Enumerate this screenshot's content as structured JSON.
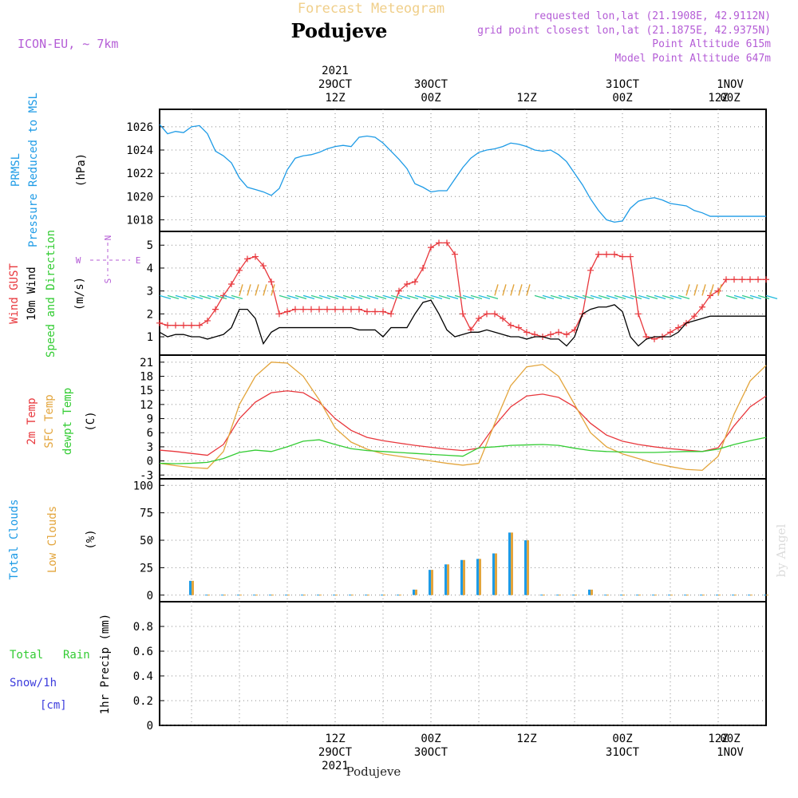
{
  "header": {
    "title": "Forecast Meteogram",
    "location": "Podujeve",
    "model": "ICON-EU, ~ 7km",
    "requested": "requested lon,lat (21.1908E, 42.9112N)",
    "grid_point": "grid point closest lon,lat (21.1875E, 42.9375N)",
    "point_altitude": "Point Altitude 615m",
    "model_altitude": "Model Point Altitude 647m",
    "credit": "by Angel",
    "footer_location": "Podujeve"
  },
  "time_axis": {
    "start_hour": -10,
    "end_hour": 66,
    "top_labels": [
      {
        "hour": 12,
        "lines": [
          "2021",
          "29OCT",
          "12Z"
        ]
      },
      {
        "hour": 24,
        "lines": [
          "30OCT",
          "00Z"
        ]
      },
      {
        "hour": 36,
        "lines": [
          "12Z"
        ]
      },
      {
        "hour": 48,
        "lines": [
          "31OCT",
          "00Z"
        ]
      },
      {
        "hour": 60,
        "lines": [
          "12Z"
        ]
      },
      {
        "hour": 72,
        "lines": [
          "1NOV",
          "00Z"
        ]
      }
    ],
    "bottom_labels": [
      {
        "hour": 12,
        "lines": [
          "12Z",
          "29OCT",
          "2021"
        ]
      },
      {
        "hour": 24,
        "lines": [
          "00Z",
          "30OCT"
        ]
      },
      {
        "hour": 36,
        "lines": [
          "12Z"
        ]
      },
      {
        "hour": 48,
        "lines": [
          "00Z",
          "31OCT"
        ]
      },
      {
        "hour": 60,
        "lines": [
          "12Z"
        ]
      },
      {
        "hour": 72,
        "lines": [
          "00Z",
          "1NOV"
        ]
      }
    ]
  },
  "colors": {
    "pressure": "#1e9be6",
    "gust": "#e8373c",
    "wind": "#000000",
    "temp": "#e8373c",
    "sfc": "#e3a53c",
    "dewpt": "#33cc33",
    "total_clouds": "#1e9be6",
    "low_clouds": "#e3a53c",
    "rain": "#33cc33",
    "snow": "#3c3cdd",
    "legend_purple": "#b45cd6",
    "title_gold": "#f0cf8a"
  },
  "panel_labels": {
    "pressure": [
      "PRMSL",
      "Pressure Reduced to MSL",
      "(hPa)"
    ],
    "wind": [
      "Wind GUST",
      "10m Wind",
      "Speed and Direction",
      "(m/s)"
    ],
    "compass": {
      "n": "N",
      "s": "S",
      "w": "W",
      "e": "E"
    },
    "temp": [
      "2m Temp",
      "SFC Temp",
      "dewpt Temp",
      "(C)"
    ],
    "clouds": [
      "Total Clouds",
      "Low Clouds",
      "(%)"
    ],
    "precip": [
      "Total",
      "Rain",
      "Snow/1h",
      "[cm]",
      "1hr Precip (mm)"
    ]
  },
  "chart_data": [
    {
      "type": "line",
      "panel": "pressure",
      "ylim": [
        1017,
        1027.5
      ],
      "yticks": [
        1018,
        1020,
        1022,
        1024,
        1026
      ],
      "series": [
        {
          "name": "PRMSL",
          "x": [
            -10,
            -9,
            -8,
            -7,
            -6,
            -5,
            -4,
            -3,
            -2,
            -1,
            0,
            1,
            2,
            3,
            4,
            5,
            6,
            7,
            8,
            9,
            10,
            11,
            12,
            13,
            14,
            15,
            16,
            17,
            18,
            19,
            20,
            21,
            22,
            23,
            24,
            25,
            26,
            27,
            28,
            29,
            30,
            31,
            32,
            33,
            34,
            35,
            36,
            37,
            38,
            39,
            40,
            41,
            42,
            43,
            44,
            45,
            46,
            47,
            48,
            49,
            50,
            51,
            52,
            53,
            54,
            55,
            56,
            57,
            58,
            59,
            60,
            61,
            62,
            63,
            64,
            65,
            66
          ],
          "values": [
            1026.2,
            1025.4,
            1025.6,
            1025.5,
            1026.0,
            1026.1,
            1025.4,
            1023.9,
            1023.5,
            1022.9,
            1021.6,
            1020.8,
            1020.6,
            1020.4,
            1020.1,
            1020.7,
            1022.3,
            1023.3,
            1023.5,
            1023.6,
            1023.8,
            1024.1,
            1024.3,
            1024.4,
            1024.3,
            1025.1,
            1025.2,
            1025.1,
            1024.6,
            1023.9,
            1023.2,
            1022.4,
            1021.1,
            1020.8,
            1020.4,
            1020.5,
            1020.5,
            1021.5,
            1022.5,
            1023.3,
            1023.8,
            1024.0,
            1024.1,
            1024.3,
            1024.6,
            1024.5,
            1024.3,
            1024.0,
            1023.9,
            1024.0,
            1023.6,
            1023.0,
            1022.0,
            1021.0,
            1019.8,
            1018.8,
            1018.0,
            1017.8,
            1017.9,
            1019.0,
            1019.6,
            1019.8,
            1019.9,
            1019.7,
            1019.4,
            1019.3,
            1019.2,
            1018.8,
            1018.6,
            1018.3,
            1018.3,
            1018.3,
            1018.3,
            1018.3,
            1018.3,
            1018.3,
            1018.3
          ]
        }
      ]
    },
    {
      "type": "line",
      "panel": "wind",
      "ylim": [
        0.2,
        5.6
      ],
      "yticks": [
        1,
        2,
        3,
        4,
        5
      ],
      "series": [
        {
          "name": "Wind GUST",
          "x": [
            -10,
            -9,
            -8,
            -7,
            -6,
            -5,
            -4,
            -3,
            -2,
            -1,
            0,
            1,
            2,
            3,
            4,
            5,
            6,
            7,
            8,
            9,
            10,
            11,
            12,
            13,
            14,
            15,
            16,
            17,
            18,
            19,
            20,
            21,
            22,
            23,
            24,
            25,
            26,
            27,
            28,
            29,
            30,
            31,
            32,
            33,
            34,
            35,
            36,
            37,
            38,
            39,
            40,
            41,
            42,
            43,
            44,
            45,
            46,
            47,
            48,
            49,
            50,
            51,
            52,
            53,
            54,
            55,
            56,
            57,
            58,
            59,
            60,
            61,
            62,
            63,
            64,
            65,
            66
          ],
          "values": [
            1.6,
            1.5,
            1.5,
            1.5,
            1.5,
            1.5,
            1.7,
            2.2,
            2.8,
            3.3,
            3.9,
            4.4,
            4.5,
            4.1,
            3.4,
            2.0,
            2.1,
            2.2,
            2.2,
            2.2,
            2.2,
            2.2,
            2.2,
            2.2,
            2.2,
            2.2,
            2.1,
            2.1,
            2.1,
            2.0,
            3.0,
            3.3,
            3.4,
            4.0,
            4.9,
            5.1,
            5.1,
            4.6,
            2.0,
            1.3,
            1.8,
            2.0,
            2.0,
            1.8,
            1.5,
            1.4,
            1.2,
            1.1,
            1.0,
            1.1,
            1.2,
            1.1,
            1.3,
            2.0,
            3.9,
            4.6,
            4.6,
            4.6,
            4.5,
            4.5,
            2.0,
            1.0,
            0.9,
            1.0,
            1.2,
            1.4,
            1.6,
            1.9,
            2.3,
            2.8,
            3.0,
            3.5,
            3.5,
            3.5,
            3.5,
            3.5,
            3.5
          ]
        },
        {
          "name": "10m Wind",
          "x": [
            -10,
            -9,
            -8,
            -7,
            -6,
            -5,
            -4,
            -3,
            -2,
            -1,
            0,
            1,
            2,
            3,
            4,
            5,
            6,
            7,
            8,
            9,
            10,
            11,
            12,
            13,
            14,
            15,
            16,
            17,
            18,
            19,
            20,
            21,
            22,
            23,
            24,
            25,
            26,
            27,
            28,
            29,
            30,
            31,
            32,
            33,
            34,
            35,
            36,
            37,
            38,
            39,
            40,
            41,
            42,
            43,
            44,
            45,
            46,
            47,
            48,
            49,
            50,
            51,
            52,
            53,
            54,
            55,
            56,
            57,
            58,
            59,
            60,
            61,
            62,
            63,
            64,
            65,
            66
          ],
          "values": [
            1.2,
            1.0,
            1.1,
            1.1,
            1.0,
            1.0,
            0.9,
            1.0,
            1.1,
            1.4,
            2.2,
            2.2,
            1.8,
            0.7,
            1.2,
            1.4,
            1.4,
            1.4,
            1.4,
            1.4,
            1.4,
            1.4,
            1.4,
            1.4,
            1.4,
            1.3,
            1.3,
            1.3,
            1.0,
            1.4,
            1.4,
            1.4,
            2.0,
            2.5,
            2.6,
            2.0,
            1.3,
            1.0,
            1.1,
            1.2,
            1.2,
            1.3,
            1.2,
            1.1,
            1.0,
            1.0,
            0.9,
            1.0,
            1.0,
            0.9,
            0.9,
            0.6,
            1.0,
            2.0,
            2.2,
            2.3,
            2.3,
            2.4,
            2.1,
            1.0,
            0.6,
            0.9,
            1.0,
            1.0,
            1.0,
            1.2,
            1.6,
            1.7,
            1.8,
            1.9,
            1.9,
            1.9,
            1.9,
            1.9,
            1.9,
            1.9,
            1.9
          ]
        }
      ]
    },
    {
      "type": "line",
      "panel": "temp",
      "ylim": [
        -3.8,
        22.5
      ],
      "yticks": [
        -3,
        0,
        3,
        6,
        9,
        12,
        15,
        18,
        21
      ],
      "series": [
        {
          "name": "2m Temp",
          "x": [
            -10,
            -8,
            -6,
            -4,
            -2,
            0,
            2,
            4,
            6,
            8,
            10,
            12,
            14,
            16,
            18,
            20,
            22,
            24,
            26,
            28,
            30,
            32,
            34,
            36,
            38,
            40,
            42,
            44,
            46,
            48,
            50,
            52,
            54,
            56,
            58,
            60,
            62,
            64,
            66
          ],
          "values": [
            2.3,
            2.0,
            1.6,
            1.2,
            3.5,
            9.0,
            12.5,
            14.5,
            14.9,
            14.5,
            12.5,
            9.0,
            6.5,
            5.0,
            4.3,
            3.8,
            3.3,
            2.9,
            2.5,
            2.2,
            2.7,
            7.5,
            11.5,
            13.8,
            14.2,
            13.5,
            11.5,
            8.0,
            5.5,
            4.2,
            3.5,
            3.0,
            2.6,
            2.3,
            2.0,
            2.8,
            7.5,
            11.5,
            13.8
          ]
        },
        {
          "name": "SFC Temp",
          "x": [
            -10,
            -8,
            -6,
            -4,
            -2,
            0,
            2,
            4,
            6,
            8,
            10,
            12,
            14,
            16,
            18,
            20,
            22,
            24,
            26,
            28,
            30,
            32,
            34,
            36,
            38,
            40,
            42,
            44,
            46,
            48,
            50,
            52,
            54,
            56,
            58,
            60,
            62,
            64,
            66
          ],
          "values": [
            -0.5,
            -1.0,
            -1.4,
            -1.6,
            2.0,
            12.0,
            18.0,
            21.0,
            20.8,
            18.0,
            13.0,
            7.0,
            4.0,
            2.5,
            1.5,
            1.0,
            0.5,
            0.0,
            -0.5,
            -0.9,
            -0.5,
            8.0,
            16.0,
            20.0,
            20.5,
            18.0,
            12.0,
            6.0,
            3.0,
            1.5,
            0.5,
            -0.5,
            -1.2,
            -1.8,
            -2.0,
            1.0,
            10.0,
            17.0,
            20.3
          ]
        },
        {
          "name": "dewpt Temp",
          "x": [
            -10,
            -8,
            -6,
            -4,
            -2,
            0,
            2,
            4,
            6,
            8,
            10,
            12,
            14,
            16,
            18,
            20,
            22,
            24,
            26,
            28,
            30,
            32,
            34,
            36,
            38,
            40,
            42,
            44,
            46,
            48,
            50,
            52,
            54,
            56,
            58,
            60,
            62,
            64,
            66
          ],
          "values": [
            -0.5,
            -0.6,
            -0.5,
            -0.3,
            0.5,
            1.8,
            2.3,
            2.0,
            3.0,
            4.2,
            4.5,
            3.5,
            2.6,
            2.2,
            2.0,
            1.8,
            1.6,
            1.4,
            1.2,
            1.0,
            2.8,
            3.0,
            3.3,
            3.4,
            3.5,
            3.3,
            2.7,
            2.2,
            2.0,
            1.9,
            1.8,
            1.8,
            1.9,
            2.0,
            2.0,
            2.5,
            3.5,
            4.3,
            5.0
          ]
        }
      ]
    },
    {
      "type": "bar",
      "panel": "clouds",
      "ylim": [
        -6,
        106
      ],
      "yticks": [
        0,
        25,
        50,
        75,
        100
      ],
      "series": [
        {
          "name": "Total Clouds",
          "x": [
            -6,
            -4,
            -2,
            0,
            2,
            4,
            6,
            8,
            10,
            12,
            14,
            16,
            18,
            20,
            22,
            24,
            26,
            28,
            30,
            32,
            34,
            36,
            38,
            40,
            42,
            44,
            46,
            48,
            50,
            52,
            54,
            56,
            58,
            60,
            62,
            64,
            66
          ],
          "values": [
            13,
            0,
            0,
            0,
            0,
            0,
            0,
            0,
            0,
            0,
            0,
            0,
            0,
            0,
            5,
            23,
            28,
            32,
            33,
            38,
            57,
            50,
            0,
            0,
            0,
            5,
            0,
            0,
            0,
            0,
            0,
            0,
            0,
            0,
            0,
            0,
            0
          ]
        },
        {
          "name": "Low Clouds",
          "x": [
            -6,
            -4,
            -2,
            0,
            2,
            4,
            6,
            8,
            10,
            12,
            14,
            16,
            18,
            20,
            22,
            24,
            26,
            28,
            30,
            32,
            34,
            36,
            38,
            40,
            42,
            44,
            46,
            48,
            50,
            52,
            54,
            56,
            58,
            60,
            62,
            64,
            66
          ],
          "values": [
            13,
            0,
            0,
            0,
            0,
            0,
            0,
            0,
            0,
            0,
            0,
            0,
            0,
            0,
            5,
            23,
            28,
            32,
            33,
            38,
            57,
            50,
            0,
            0,
            0,
            5,
            0,
            0,
            0,
            0,
            0,
            0,
            0,
            0,
            0,
            0,
            0
          ]
        }
      ]
    },
    {
      "type": "bar",
      "panel": "precip",
      "ylim": [
        0,
        1.0
      ],
      "yticks": [
        0,
        0.2,
        0.4,
        0.6,
        0.8
      ],
      "series": [
        {
          "name": "Total Rain",
          "x": [],
          "values": []
        }
      ]
    }
  ]
}
